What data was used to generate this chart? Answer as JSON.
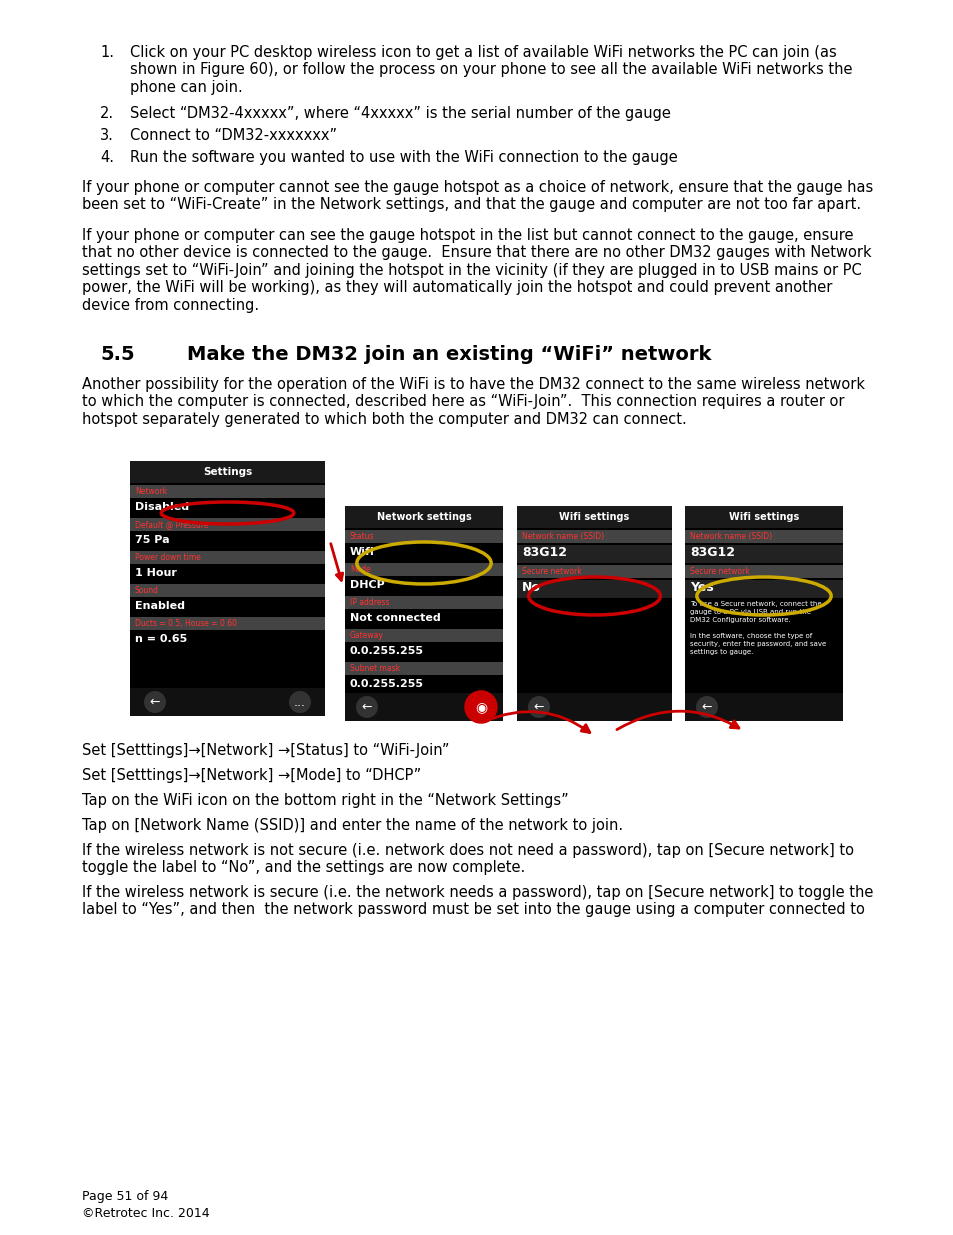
{
  "page_bg": "#ffffff",
  "body_font_size": 10.5,
  "body_color": "#000000",
  "footer_line1": "Page 51 of 94",
  "footer_line2": "©Retrotec Inc. 2014",
  "bullet_items": [
    "Click on your PC desktop wireless icon to get a list of available WiFi networks the PC can join (as\nshown in Figure 60), or follow the process on your phone to see all the available WiFi networks the\nphone can join.",
    "Select “DM32-4xxxxx”, where “4xxxxx” is the serial number of the gauge",
    "Connect to “DM32-xxxxxxx”",
    "Run the software you wanted to use with the WiFi connection to the gauge"
  ],
  "para1": "If your phone or computer cannot see the gauge hotspot as a choice of network, ensure that the gauge has\nbeen set to “WiFi-Create” in the Network settings, and that the gauge and computer are not too far apart.",
  "para2": "If your phone or computer can see the gauge hotspot in the list but cannot connect to the gauge, ensure\nthat no other device is connected to the gauge.  Ensure that there are no other DM32 gauges with Network\nsettings set to “WiFi-Join” and joining the hotspot in the vicinity (if they are plugged in to USB mains or PC\npower, the WiFi will be working), as they will automatically join the hotspot and could prevent another\ndevice from connecting.",
  "section_heading_num": "5.5",
  "section_heading_text": "Make the DM32 join an existing “WiFi” network",
  "section_para": "Another possibility for the operation of the WiFi is to have the DM32 connect to the same wireless network\nto which the computer is connected, described here as “WiFi-Join”.  This connection requires a router or\nhotspot separately generated to which both the computer and DM32 can connect.",
  "step_lines": [
    "Set [Setttings]→[Network] →[Status] to “WiFi-Join”",
    "Set [Setttings]→[Network] →[Mode] to “DHCP”",
    "Tap on the WiFi icon on the bottom right in the “Network Settings”",
    "Tap on [Network Name (SSID)] and enter the name of the network to join.",
    "If the wireless network is not secure (i.e. network does not need a password), tap on [Secure network] to\ntoggle the label to “No”, and the settings are now complete.",
    "If the wireless network is secure (i.e. the network needs a password), tap on [Secure network] to toggle the\nlabel to “Yes”, and then  the network password must be set into the gauge using a computer connected to"
  ]
}
